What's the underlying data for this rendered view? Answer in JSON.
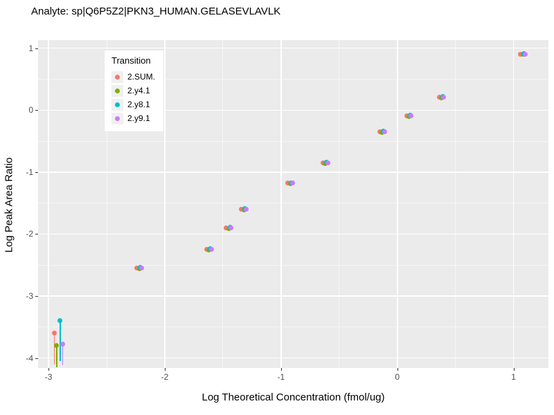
{
  "chart_data": {
    "type": "scatter",
    "title": "Analyte: sp|Q6P5Z2|PKN3_HUMAN.GELASEVLAVLK",
    "xlabel": "Log Theoretical Concentration (fmol/ug)",
    "ylabel": "Log Peak Area Ratio",
    "xlim": [
      -3.09,
      1.3
    ],
    "ylim": [
      -4.16,
      1.13
    ],
    "xticks": [
      -3,
      -2,
      -1,
      0,
      1
    ],
    "yticks": [
      -4,
      -3,
      -2,
      -1,
      0,
      1
    ],
    "xticks_minor": [
      -2.5,
      -1.5,
      -0.5,
      0.5
    ],
    "yticks_minor": [
      -3.5,
      -2.5,
      -1.5,
      -0.5,
      0.5
    ],
    "panel_bg": "#EBEBEB",
    "grid_color": "#FFFFFF",
    "legend": {
      "title": "Transition",
      "position": "inside-top-left",
      "entries": [
        {
          "label": "2.SUM.",
          "color": "#F8766D"
        },
        {
          "label": "2.y4.1",
          "color": "#7CAE00"
        },
        {
          "label": "2.y8.1",
          "color": "#00BFC4"
        },
        {
          "label": "2.y9.1",
          "color": "#C77CFF"
        }
      ]
    },
    "series": [
      {
        "name": "2.SUM.",
        "color": "#F8766D",
        "points": [
          [
            -2.95,
            -3.6
          ],
          [
            -2.24,
            -2.55
          ],
          [
            -1.64,
            -2.25
          ],
          [
            -1.47,
            -1.9
          ],
          [
            -1.34,
            -1.6
          ],
          [
            -0.94,
            -1.18
          ],
          [
            -0.64,
            -0.85
          ],
          [
            -0.15,
            -0.35
          ],
          [
            0.08,
            -0.09
          ],
          [
            0.36,
            0.21
          ],
          [
            1.06,
            0.9
          ]
        ]
      },
      {
        "name": "2.y4.1",
        "color": "#7CAE00",
        "points": [
          [
            -2.93,
            -3.8
          ],
          [
            -2.22,
            -2.56
          ],
          [
            -1.62,
            -2.26
          ],
          [
            -1.45,
            -1.91
          ],
          [
            -1.32,
            -1.61
          ],
          [
            -0.92,
            -1.19
          ],
          [
            -0.62,
            -0.86
          ],
          [
            -0.13,
            -0.36
          ],
          [
            0.1,
            -0.1
          ],
          [
            0.38,
            0.2
          ],
          [
            1.08,
            0.9
          ]
        ]
      },
      {
        "name": "2.y8.1",
        "color": "#00BFC4",
        "points": [
          [
            -2.9,
            -3.4
          ],
          [
            -2.21,
            -2.54
          ],
          [
            -1.61,
            -2.24
          ],
          [
            -1.44,
            -1.89
          ],
          [
            -1.31,
            -1.59
          ],
          [
            -0.91,
            -1.17
          ],
          [
            -0.61,
            -0.84
          ],
          [
            -0.12,
            -0.34
          ],
          [
            0.11,
            -0.08
          ],
          [
            0.39,
            0.22
          ],
          [
            1.09,
            0.91
          ]
        ]
      },
      {
        "name": "2.y9.1",
        "color": "#C77CFF",
        "points": [
          [
            -2.88,
            -3.78
          ],
          [
            -2.2,
            -2.55
          ],
          [
            -1.6,
            -2.25
          ],
          [
            -1.43,
            -1.9
          ],
          [
            -1.3,
            -1.6
          ],
          [
            -0.9,
            -1.18
          ],
          [
            -0.6,
            -0.85
          ],
          [
            -0.11,
            -0.35
          ],
          [
            0.12,
            -0.09
          ],
          [
            0.4,
            0.21
          ],
          [
            1.1,
            0.9
          ]
        ]
      }
    ],
    "segments": [
      {
        "x": -2.95,
        "y0": -3.6,
        "y1": -4.1,
        "color": "#F8766D"
      },
      {
        "x": -2.93,
        "y0": -3.8,
        "y1": -4.15,
        "color": "#7CAE00"
      },
      {
        "x": -2.9,
        "y0": -3.4,
        "y1": -4.05,
        "color": "#00BFC4"
      },
      {
        "x": -2.88,
        "y0": -3.78,
        "y1": -4.12,
        "color": "#C77CFF"
      }
    ]
  }
}
